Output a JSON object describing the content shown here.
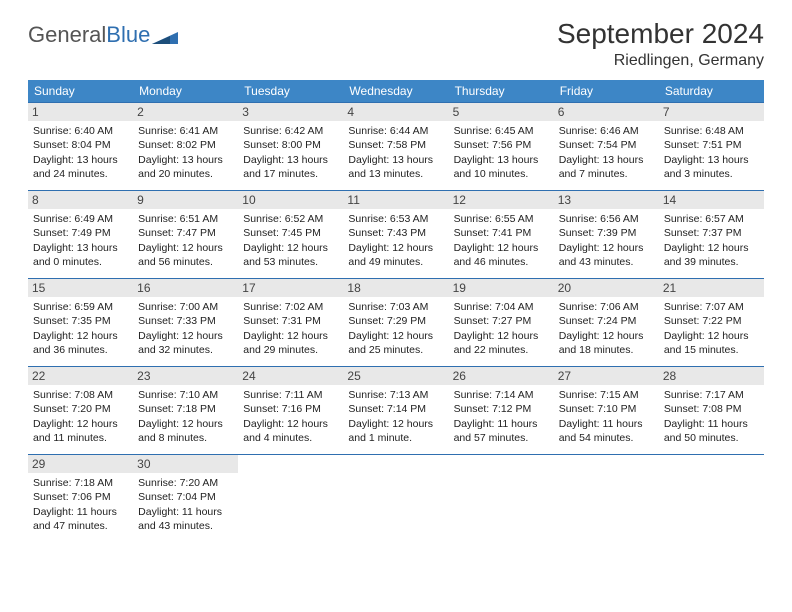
{
  "brand": {
    "part1": "General",
    "part2": "Blue"
  },
  "title": "September 2024",
  "location": "Riedlingen, Germany",
  "colors": {
    "header_bg": "#3d86c6",
    "header_text": "#ffffff",
    "border": "#2f6fb0",
    "daynum_bg": "#e8e8e8",
    "text": "#222222",
    "background": "#ffffff"
  },
  "typography": {
    "title_fontsize": 28,
    "location_fontsize": 16,
    "weekday_fontsize": 12,
    "cell_fontsize": 10.5
  },
  "weekdays": [
    "Sunday",
    "Monday",
    "Tuesday",
    "Wednesday",
    "Thursday",
    "Friday",
    "Saturday"
  ],
  "weeks": [
    [
      {
        "day": "1",
        "sunrise": "Sunrise: 6:40 AM",
        "sunset": "Sunset: 8:04 PM",
        "dl1": "Daylight: 13 hours",
        "dl2": "and 24 minutes."
      },
      {
        "day": "2",
        "sunrise": "Sunrise: 6:41 AM",
        "sunset": "Sunset: 8:02 PM",
        "dl1": "Daylight: 13 hours",
        "dl2": "and 20 minutes."
      },
      {
        "day": "3",
        "sunrise": "Sunrise: 6:42 AM",
        "sunset": "Sunset: 8:00 PM",
        "dl1": "Daylight: 13 hours",
        "dl2": "and 17 minutes."
      },
      {
        "day": "4",
        "sunrise": "Sunrise: 6:44 AM",
        "sunset": "Sunset: 7:58 PM",
        "dl1": "Daylight: 13 hours",
        "dl2": "and 13 minutes."
      },
      {
        "day": "5",
        "sunrise": "Sunrise: 6:45 AM",
        "sunset": "Sunset: 7:56 PM",
        "dl1": "Daylight: 13 hours",
        "dl2": "and 10 minutes."
      },
      {
        "day": "6",
        "sunrise": "Sunrise: 6:46 AM",
        "sunset": "Sunset: 7:54 PM",
        "dl1": "Daylight: 13 hours",
        "dl2": "and 7 minutes."
      },
      {
        "day": "7",
        "sunrise": "Sunrise: 6:48 AM",
        "sunset": "Sunset: 7:51 PM",
        "dl1": "Daylight: 13 hours",
        "dl2": "and 3 minutes."
      }
    ],
    [
      {
        "day": "8",
        "sunrise": "Sunrise: 6:49 AM",
        "sunset": "Sunset: 7:49 PM",
        "dl1": "Daylight: 13 hours",
        "dl2": "and 0 minutes."
      },
      {
        "day": "9",
        "sunrise": "Sunrise: 6:51 AM",
        "sunset": "Sunset: 7:47 PM",
        "dl1": "Daylight: 12 hours",
        "dl2": "and 56 minutes."
      },
      {
        "day": "10",
        "sunrise": "Sunrise: 6:52 AM",
        "sunset": "Sunset: 7:45 PM",
        "dl1": "Daylight: 12 hours",
        "dl2": "and 53 minutes."
      },
      {
        "day": "11",
        "sunrise": "Sunrise: 6:53 AM",
        "sunset": "Sunset: 7:43 PM",
        "dl1": "Daylight: 12 hours",
        "dl2": "and 49 minutes."
      },
      {
        "day": "12",
        "sunrise": "Sunrise: 6:55 AM",
        "sunset": "Sunset: 7:41 PM",
        "dl1": "Daylight: 12 hours",
        "dl2": "and 46 minutes."
      },
      {
        "day": "13",
        "sunrise": "Sunrise: 6:56 AM",
        "sunset": "Sunset: 7:39 PM",
        "dl1": "Daylight: 12 hours",
        "dl2": "and 43 minutes."
      },
      {
        "day": "14",
        "sunrise": "Sunrise: 6:57 AM",
        "sunset": "Sunset: 7:37 PM",
        "dl1": "Daylight: 12 hours",
        "dl2": "and 39 minutes."
      }
    ],
    [
      {
        "day": "15",
        "sunrise": "Sunrise: 6:59 AM",
        "sunset": "Sunset: 7:35 PM",
        "dl1": "Daylight: 12 hours",
        "dl2": "and 36 minutes."
      },
      {
        "day": "16",
        "sunrise": "Sunrise: 7:00 AM",
        "sunset": "Sunset: 7:33 PM",
        "dl1": "Daylight: 12 hours",
        "dl2": "and 32 minutes."
      },
      {
        "day": "17",
        "sunrise": "Sunrise: 7:02 AM",
        "sunset": "Sunset: 7:31 PM",
        "dl1": "Daylight: 12 hours",
        "dl2": "and 29 minutes."
      },
      {
        "day": "18",
        "sunrise": "Sunrise: 7:03 AM",
        "sunset": "Sunset: 7:29 PM",
        "dl1": "Daylight: 12 hours",
        "dl2": "and 25 minutes."
      },
      {
        "day": "19",
        "sunrise": "Sunrise: 7:04 AM",
        "sunset": "Sunset: 7:27 PM",
        "dl1": "Daylight: 12 hours",
        "dl2": "and 22 minutes."
      },
      {
        "day": "20",
        "sunrise": "Sunrise: 7:06 AM",
        "sunset": "Sunset: 7:24 PM",
        "dl1": "Daylight: 12 hours",
        "dl2": "and 18 minutes."
      },
      {
        "day": "21",
        "sunrise": "Sunrise: 7:07 AM",
        "sunset": "Sunset: 7:22 PM",
        "dl1": "Daylight: 12 hours",
        "dl2": "and 15 minutes."
      }
    ],
    [
      {
        "day": "22",
        "sunrise": "Sunrise: 7:08 AM",
        "sunset": "Sunset: 7:20 PM",
        "dl1": "Daylight: 12 hours",
        "dl2": "and 11 minutes."
      },
      {
        "day": "23",
        "sunrise": "Sunrise: 7:10 AM",
        "sunset": "Sunset: 7:18 PM",
        "dl1": "Daylight: 12 hours",
        "dl2": "and 8 minutes."
      },
      {
        "day": "24",
        "sunrise": "Sunrise: 7:11 AM",
        "sunset": "Sunset: 7:16 PM",
        "dl1": "Daylight: 12 hours",
        "dl2": "and 4 minutes."
      },
      {
        "day": "25",
        "sunrise": "Sunrise: 7:13 AM",
        "sunset": "Sunset: 7:14 PM",
        "dl1": "Daylight: 12 hours",
        "dl2": "and 1 minute."
      },
      {
        "day": "26",
        "sunrise": "Sunrise: 7:14 AM",
        "sunset": "Sunset: 7:12 PM",
        "dl1": "Daylight: 11 hours",
        "dl2": "and 57 minutes."
      },
      {
        "day": "27",
        "sunrise": "Sunrise: 7:15 AM",
        "sunset": "Sunset: 7:10 PM",
        "dl1": "Daylight: 11 hours",
        "dl2": "and 54 minutes."
      },
      {
        "day": "28",
        "sunrise": "Sunrise: 7:17 AM",
        "sunset": "Sunset: 7:08 PM",
        "dl1": "Daylight: 11 hours",
        "dl2": "and 50 minutes."
      }
    ],
    [
      {
        "day": "29",
        "sunrise": "Sunrise: 7:18 AM",
        "sunset": "Sunset: 7:06 PM",
        "dl1": "Daylight: 11 hours",
        "dl2": "and 47 minutes."
      },
      {
        "day": "30",
        "sunrise": "Sunrise: 7:20 AM",
        "sunset": "Sunset: 7:04 PM",
        "dl1": "Daylight: 11 hours",
        "dl2": "and 43 minutes."
      },
      null,
      null,
      null,
      null,
      null
    ]
  ]
}
